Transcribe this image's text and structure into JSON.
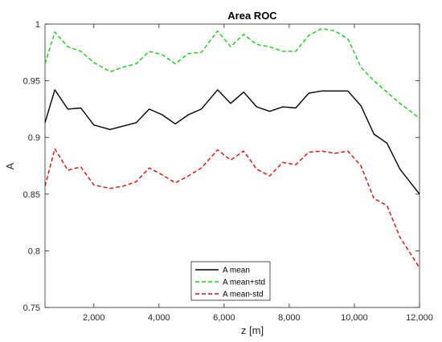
{
  "chart_data": {
    "type": "line",
    "title": "Area ROC",
    "xlabel": "z [m]",
    "ylabel": "A",
    "xlim": [
      500,
      12000
    ],
    "ylim": [
      0.75,
      1.0
    ],
    "xticks": [
      2000,
      4000,
      6000,
      8000,
      10000,
      12000
    ],
    "xtick_labels": [
      "2,000",
      "4,000",
      "6,000",
      "8,000",
      "10,000",
      "12,000"
    ],
    "yticks": [
      0.75,
      0.8,
      0.85,
      0.9,
      0.95,
      1.0
    ],
    "ytick_labels": [
      "0.75",
      "0.8",
      "0.85",
      "0.9",
      "0.95",
      "1"
    ],
    "grid": false,
    "legend_position": "bottom-center",
    "x": [
      500,
      800,
      1200,
      1600,
      2000,
      2500,
      2900,
      3300,
      3700,
      4100,
      4500,
      4900,
      5300,
      5800,
      6200,
      6600,
      7000,
      7400,
      7800,
      8200,
      8600,
      9000,
      9400,
      9800,
      10200,
      10600,
      11000,
      11400,
      12000
    ],
    "series": [
      {
        "name": "A mean",
        "color": "#000000",
        "dash": "solid",
        "values": [
          0.913,
          0.942,
          0.925,
          0.926,
          0.911,
          0.907,
          0.91,
          0.913,
          0.925,
          0.92,
          0.912,
          0.92,
          0.925,
          0.942,
          0.93,
          0.94,
          0.927,
          0.923,
          0.927,
          0.926,
          0.939,
          0.941,
          0.941,
          0.941,
          0.928,
          0.903,
          0.895,
          0.872,
          0.85
        ]
      },
      {
        "name": "A mean+std",
        "color": "#00e000",
        "dash": "dashed",
        "values": [
          0.965,
          0.993,
          0.98,
          0.976,
          0.966,
          0.958,
          0.962,
          0.965,
          0.976,
          0.973,
          0.965,
          0.974,
          0.975,
          0.994,
          0.98,
          0.991,
          0.982,
          0.98,
          0.976,
          0.976,
          0.99,
          0.996,
          0.994,
          0.987,
          0.962,
          0.95,
          0.94,
          0.93,
          0.917
        ]
      },
      {
        "name": "A mean-std",
        "color": "#ff0000",
        "dash": "dashed",
        "values": [
          0.857,
          0.89,
          0.871,
          0.874,
          0.858,
          0.855,
          0.857,
          0.861,
          0.873,
          0.867,
          0.86,
          0.866,
          0.873,
          0.889,
          0.88,
          0.888,
          0.872,
          0.866,
          0.878,
          0.876,
          0.887,
          0.888,
          0.886,
          0.888,
          0.875,
          0.846,
          0.84,
          0.812,
          0.785
        ]
      }
    ]
  }
}
